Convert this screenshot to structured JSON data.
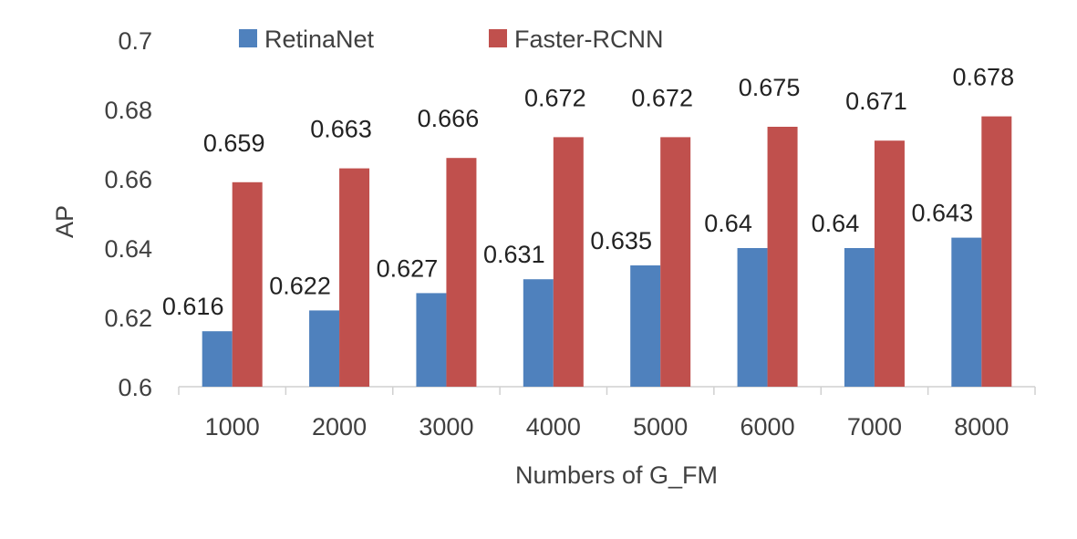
{
  "chart_data": {
    "type": "bar",
    "title": "",
    "xlabel": "Numbers of G_FM",
    "ylabel": "AP",
    "categories": [
      "1000",
      "2000",
      "3000",
      "4000",
      "5000",
      "6000",
      "7000",
      "8000"
    ],
    "series": [
      {
        "name": "RetinaNet",
        "color": "#4F81BD",
        "values": [
          0.616,
          0.622,
          0.627,
          0.631,
          0.635,
          0.64,
          0.64,
          0.643
        ],
        "labels": [
          "0.616",
          "0.622",
          "0.627",
          "0.631",
          "0.635",
          "0.64",
          "0.64",
          "0.643"
        ]
      },
      {
        "name": "Faster-RCNN",
        "color": "#C0504D",
        "values": [
          0.659,
          0.663,
          0.666,
          0.672,
          0.672,
          0.675,
          0.671,
          0.678
        ],
        "labels": [
          "0.659",
          "0.663",
          "0.666",
          "0.672",
          "0.672",
          "0.675",
          "0.671",
          "0.678"
        ]
      }
    ],
    "ylim": [
      0.6,
      0.7
    ],
    "yticks": [
      "0.6",
      "0.62",
      "0.64",
      "0.66",
      "0.68",
      "0.7"
    ],
    "grid": false,
    "legend_position": "top"
  }
}
